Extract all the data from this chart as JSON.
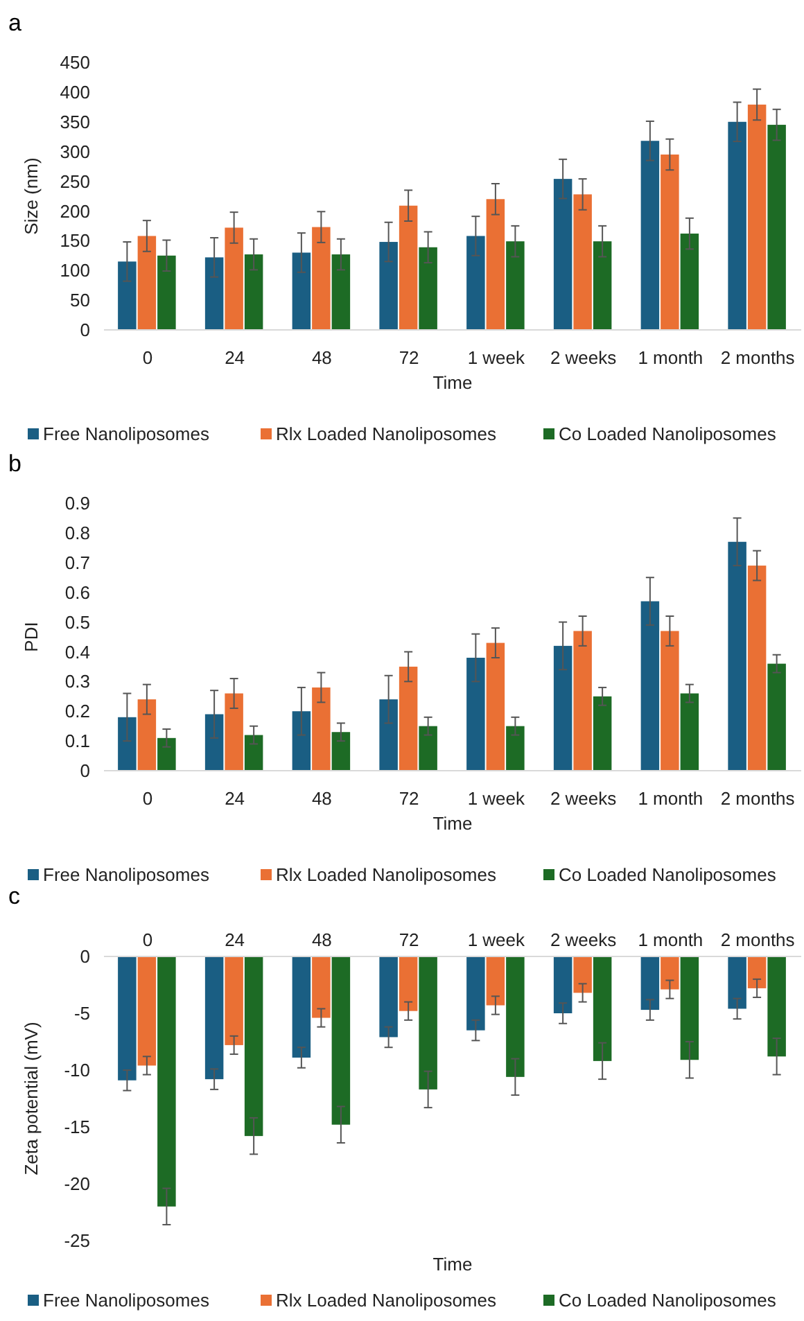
{
  "chart_data": [
    {
      "type": "bar",
      "title": "a",
      "xlabel": "Time",
      "ylabel": "Size (nm)",
      "categories": [
        "0",
        "24",
        "48",
        "72",
        "1 week",
        "2 weeks",
        "1 month",
        "2 months"
      ],
      "ylim": [
        0,
        450
      ],
      "yticks": [
        0,
        50,
        100,
        150,
        200,
        250,
        300,
        350,
        400,
        450
      ],
      "grid": false,
      "legend": "bottom",
      "series": [
        {
          "name": "Free Nanoliposomes",
          "color": "#1a5e83",
          "values": [
            115,
            122,
            130,
            148,
            158,
            254,
            318,
            350
          ],
          "errors": [
            33,
            33,
            33,
            33,
            33,
            33,
            33,
            33
          ]
        },
        {
          "name": "Rlx Loaded Nanoliposomes",
          "color": "#ea7034",
          "values": [
            158,
            172,
            173,
            209,
            220,
            228,
            295,
            379
          ],
          "errors": [
            26,
            26,
            26,
            26,
            26,
            26,
            26,
            26
          ]
        },
        {
          "name": "Co Loaded Nanoliposomes",
          "color": "#1d6b25",
          "values": [
            125,
            127,
            127,
            139,
            149,
            149,
            162,
            345
          ],
          "errors": [
            26,
            26,
            26,
            26,
            26,
            26,
            26,
            26
          ]
        }
      ]
    },
    {
      "type": "bar",
      "title": "b",
      "xlabel": "Time",
      "ylabel": "PDI",
      "categories": [
        "0",
        "24",
        "48",
        "72",
        "1 week",
        "2 weeks",
        "1 month",
        "2 months"
      ],
      "ylim": [
        0,
        0.9
      ],
      "yticks": [
        0,
        0.1,
        0.2,
        0.3,
        0.4,
        0.5,
        0.6,
        0.7,
        0.8,
        0.9
      ],
      "grid": false,
      "legend": "bottom",
      "series": [
        {
          "name": "Free Nanoliposomes",
          "color": "#1a5e83",
          "values": [
            0.18,
            0.19,
            0.2,
            0.24,
            0.38,
            0.42,
            0.57,
            0.77
          ],
          "errors": [
            0.08,
            0.08,
            0.08,
            0.08,
            0.08,
            0.08,
            0.08,
            0.08
          ]
        },
        {
          "name": "Rlx Loaded Nanoliposomes",
          "color": "#ea7034",
          "values": [
            0.24,
            0.26,
            0.28,
            0.35,
            0.43,
            0.47,
            0.47,
            0.69
          ],
          "errors": [
            0.05,
            0.05,
            0.05,
            0.05,
            0.05,
            0.05,
            0.05,
            0.05
          ]
        },
        {
          "name": "Co Loaded Nanoliposomes",
          "color": "#1d6b25",
          "values": [
            0.11,
            0.12,
            0.13,
            0.15,
            0.15,
            0.25,
            0.26,
            0.36
          ],
          "errors": [
            0.03,
            0.03,
            0.03,
            0.03,
            0.03,
            0.03,
            0.03,
            0.03
          ]
        }
      ]
    },
    {
      "type": "bar",
      "title": "c",
      "xlabel": "Time",
      "ylabel": "Zeta potential (mV)",
      "categories": [
        "0",
        "24",
        "48",
        "72",
        "1 week",
        "2 weeks",
        "1 month",
        "2 months"
      ],
      "ylim": [
        -25,
        0
      ],
      "yticks": [
        -25,
        -20,
        -15,
        -10,
        -5,
        0
      ],
      "grid": false,
      "legend": "bottom",
      "series": [
        {
          "name": "Free Nanoliposomes",
          "color": "#1a5e83",
          "values": [
            -10.9,
            -10.8,
            -8.9,
            -7.1,
            -6.5,
            -5.0,
            -4.7,
            -4.6
          ],
          "errors": [
            0.9,
            0.9,
            0.9,
            0.9,
            0.9,
            0.9,
            0.9,
            0.9
          ]
        },
        {
          "name": "Rlx Loaded Nanoliposomes",
          "color": "#ea7034",
          "values": [
            -9.6,
            -7.8,
            -5.4,
            -4.8,
            -4.3,
            -3.2,
            -2.9,
            -2.8
          ],
          "errors": [
            0.8,
            0.8,
            0.8,
            0.8,
            0.8,
            0.8,
            0.8,
            0.8
          ]
        },
        {
          "name": "Co Loaded Nanoliposomes",
          "color": "#1d6b25",
          "values": [
            -22,
            -15.8,
            -14.8,
            -11.7,
            -10.6,
            -9.2,
            -9.1,
            -8.8
          ],
          "errors": [
            1.6,
            1.6,
            1.6,
            1.6,
            1.6,
            1.6,
            1.6,
            1.6
          ]
        }
      ]
    }
  ]
}
